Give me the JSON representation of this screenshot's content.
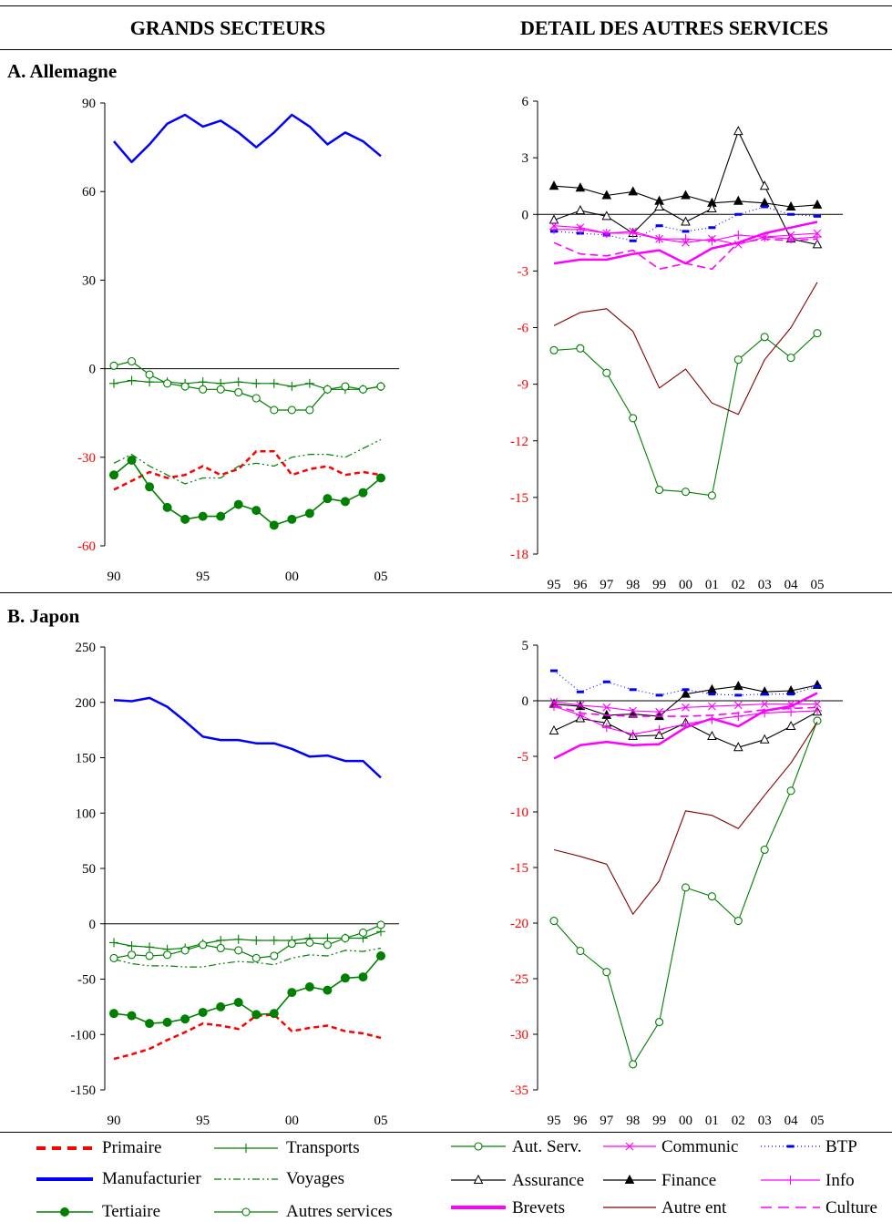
{
  "headers": {
    "left": "GRANDS SECTEURS",
    "right": "DETAIL DES AUTRES SERVICES"
  },
  "sections": {
    "a": "A. Allemagne",
    "b": "B. Japon"
  },
  "colors": {
    "primary_red": "#ff0000",
    "manuf_blue": "#0000ff",
    "green": "#008000",
    "magenta": "#ff00ff",
    "darkred": "#800000",
    "black": "#000000"
  },
  "legend": {
    "left": [
      {
        "key": "primaire",
        "label": "Primaire"
      },
      {
        "key": "transports",
        "label": "Transports"
      },
      {
        "key": "manufacturier",
        "label": "Manufacturier"
      },
      {
        "key": "voyages",
        "label": "Voyages"
      },
      {
        "key": "tertiaire",
        "label": "Tertiaire"
      },
      {
        "key": "autres_services",
        "label": "Autres services"
      }
    ],
    "right": [
      {
        "key": "aut_serv",
        "label": "Aut. Serv."
      },
      {
        "key": "communic",
        "label": "Communic"
      },
      {
        "key": "btp",
        "label": "BTP"
      },
      {
        "key": "assurance",
        "label": "Assurance"
      },
      {
        "key": "finance",
        "label": "Finance"
      },
      {
        "key": "info",
        "label": "Info"
      },
      {
        "key": "brevets",
        "label": "Brevets"
      },
      {
        "key": "autre_ent",
        "label": "Autre ent"
      },
      {
        "key": "culture",
        "label": "Culture"
      }
    ]
  },
  "chart_data": [
    {
      "id": "A-left",
      "type": "line",
      "title": "A. Allemagne — GRANDS SECTEURS",
      "x": [
        1990,
        1991,
        1992,
        1993,
        1994,
        1995,
        1996,
        1997,
        1998,
        1999,
        2000,
        2001,
        2002,
        2003,
        2004,
        2005
      ],
      "xticks": [
        {
          "v": 1990,
          "label": "90"
        },
        {
          "v": 1995,
          "label": "95"
        },
        {
          "v": 2000,
          "label": "00"
        },
        {
          "v": 2005,
          "label": "05"
        }
      ],
      "ylim": [
        -60,
        90
      ],
      "yticks": [
        {
          "v": 90,
          "label": "90",
          "red": false
        },
        {
          "v": 60,
          "label": "60",
          "red": false
        },
        {
          "v": 30,
          "label": "30",
          "red": false
        },
        {
          "v": 0,
          "label": "0",
          "red": false
        },
        {
          "v": -30,
          "label": "-30",
          "red": true
        },
        {
          "v": -60,
          "label": "-60",
          "red": true
        }
      ],
      "series": [
        {
          "key": "manufacturier",
          "name": "Manufacturier",
          "values": [
            77,
            70,
            76,
            83,
            86,
            82,
            84,
            80,
            75,
            80,
            86,
            82,
            76,
            80,
            77,
            72
          ]
        },
        {
          "key": "primaire",
          "name": "Primaire",
          "values": [
            -41,
            -38,
            -35,
            -37,
            -36,
            -33,
            -36,
            -34,
            -28,
            -28,
            -36,
            -34,
            -33,
            -36,
            -35,
            -36
          ]
        },
        {
          "key": "transports",
          "name": "Transports",
          "values": [
            -5,
            -4,
            -4.5,
            -4.5,
            -5,
            -4.5,
            -5,
            -4.5,
            -5,
            -5,
            -6,
            -5,
            -7,
            -7,
            -7,
            -6
          ]
        },
        {
          "key": "voyages",
          "name": "Voyages",
          "values": [
            -32,
            -29,
            -33,
            -36,
            -39,
            -37,
            -37,
            -33,
            -32,
            -33,
            -30,
            -29,
            -29,
            -30,
            -27,
            -24
          ]
        },
        {
          "key": "tertiaire",
          "name": "Tertiaire",
          "values": [
            -36,
            -31,
            -40,
            -47,
            -51,
            -50,
            -50,
            -46,
            -48,
            -53,
            -51,
            -49,
            -44,
            -45,
            -42,
            -37
          ]
        },
        {
          "key": "autres_services",
          "name": "Autres services",
          "values": [
            1,
            2.5,
            -2,
            -5,
            -6,
            -7,
            -7,
            -8,
            -10,
            -14,
            -14,
            -14,
            -7,
            -6,
            -7,
            -6
          ]
        }
      ]
    },
    {
      "id": "A-right",
      "type": "line",
      "title": "A. Allemagne — DETAIL DES AUTRES SERVICES",
      "x": [
        1995,
        1996,
        1997,
        1998,
        1999,
        2000,
        2001,
        2002,
        2003,
        2004,
        2005
      ],
      "xticks": [
        {
          "v": 1995,
          "label": "95"
        },
        {
          "v": 1996,
          "label": "96"
        },
        {
          "v": 1997,
          "label": "97"
        },
        {
          "v": 1998,
          "label": "98"
        },
        {
          "v": 1999,
          "label": "99"
        },
        {
          "v": 2000,
          "label": "00"
        },
        {
          "v": 2001,
          "label": "01"
        },
        {
          "v": 2002,
          "label": "02"
        },
        {
          "v": 2003,
          "label": "03"
        },
        {
          "v": 2004,
          "label": "04"
        },
        {
          "v": 2005,
          "label": "05"
        }
      ],
      "ylim": [
        -18,
        6
      ],
      "yticks": [
        {
          "v": 6,
          "label": "6",
          "red": false
        },
        {
          "v": 3,
          "label": "3",
          "red": false
        },
        {
          "v": 0,
          "label": "0",
          "red": false
        },
        {
          "v": -3,
          "label": "-3",
          "red": true
        },
        {
          "v": -6,
          "label": "-6",
          "red": true
        },
        {
          "v": -9,
          "label": "-9",
          "red": true
        },
        {
          "v": -12,
          "label": "-12",
          "red": true
        },
        {
          "v": -15,
          "label": "-15",
          "red": true
        },
        {
          "v": -18,
          "label": "-18",
          "red": true
        }
      ],
      "series": [
        {
          "key": "aut_serv",
          "name": "Aut. Serv.",
          "values": [
            -7.2,
            -7.1,
            -8.4,
            -10.8,
            -14.6,
            -14.7,
            -14.9,
            -7.7,
            -6.5,
            -7.6,
            -6.3
          ]
        },
        {
          "key": "autre_ent",
          "name": "Autre ent",
          "values": [
            -5.9,
            -5.2,
            -5,
            -6.2,
            -9.2,
            -8.2,
            -10,
            -10.6,
            -7.7,
            -6,
            -3.6
          ]
        },
        {
          "key": "finance",
          "name": "Finance",
          "values": [
            1.5,
            1.4,
            1.0,
            1.2,
            0.7,
            1.0,
            0.6,
            0.7,
            0.6,
            0.4,
            0.5
          ]
        },
        {
          "key": "assurance",
          "name": "Assurance",
          "values": [
            -0.3,
            0.2,
            -0.1,
            -1.0,
            0.4,
            -0.4,
            0.3,
            4.4,
            1.5,
            -1.3,
            -1.6
          ]
        },
        {
          "key": "btp",
          "name": "BTP",
          "values": [
            -0.9,
            -1.0,
            -1.1,
            -1.4,
            -0.6,
            -0.9,
            -0.7,
            0,
            0.4,
            0,
            -0.1
          ]
        },
        {
          "key": "communic",
          "name": "Communic",
          "values": [
            -0.6,
            -0.7,
            -1.0,
            -0.9,
            -1.3,
            -1.5,
            -1.3,
            -1.6,
            -1.2,
            -1.1,
            -1.0
          ]
        },
        {
          "key": "info",
          "name": "Info",
          "values": [
            -0.8,
            -0.8,
            -1.0,
            -1.0,
            -1.3,
            -1.3,
            -1.4,
            -1.1,
            -1.2,
            -1.3,
            -1.2
          ]
        },
        {
          "key": "brevets",
          "name": "Brevets",
          "values": [
            -2.6,
            -2.4,
            -2.4,
            -2.1,
            -1.9,
            -2.6,
            -1.8,
            -1.5,
            -1.0,
            -0.7,
            -0.4
          ]
        },
        {
          "key": "culture",
          "name": "Culture",
          "values": [
            -1.5,
            -2.1,
            -2.2,
            -1.9,
            -2.9,
            -2.6,
            -2.9,
            -1.5,
            -1.3,
            -1.4,
            -1.3
          ]
        }
      ]
    },
    {
      "id": "B-left",
      "type": "line",
      "title": "B. Japon — GRANDS SECTEURS",
      "x": [
        1990,
        1991,
        1992,
        1993,
        1994,
        1995,
        1996,
        1997,
        1998,
        1999,
        2000,
        2001,
        2002,
        2003,
        2004,
        2005
      ],
      "xticks": [
        {
          "v": 1990,
          "label": "90"
        },
        {
          "v": 1995,
          "label": "95"
        },
        {
          "v": 2000,
          "label": "00"
        },
        {
          "v": 2005,
          "label": "05"
        }
      ],
      "ylim": [
        -150,
        250
      ],
      "yticks": [
        {
          "v": 250,
          "label": "250",
          "red": false
        },
        {
          "v": 200,
          "label": "200",
          "red": false
        },
        {
          "v": 150,
          "label": "150",
          "red": false
        },
        {
          "v": 100,
          "label": "100",
          "red": false
        },
        {
          "v": 50,
          "label": "50",
          "red": false
        },
        {
          "v": 0,
          "label": "0",
          "red": false
        },
        {
          "v": -50,
          "label": "-50",
          "red": false
        },
        {
          "v": -100,
          "label": "-100",
          "red": false
        },
        {
          "v": -150,
          "label": "-150",
          "red": false
        }
      ],
      "series": [
        {
          "key": "manufacturier",
          "name": "Manufacturier",
          "values": [
            202,
            201,
            204,
            196,
            183,
            169,
            166,
            166,
            163,
            163,
            158,
            151,
            152,
            147,
            147,
            132
          ]
        },
        {
          "key": "primaire",
          "name": "Primaire",
          "values": [
            -122,
            -118,
            -113,
            -105,
            -98,
            -90,
            -92,
            -95,
            -83,
            -82,
            -97,
            -94,
            -92,
            -97,
            -99,
            -103
          ]
        },
        {
          "key": "transports",
          "name": "Transports",
          "values": [
            -17,
            -20,
            -21,
            -23,
            -22,
            -18,
            -15,
            -14,
            -15,
            -15,
            -15,
            -13,
            -13,
            -13,
            -13,
            -7
          ]
        },
        {
          "key": "voyages",
          "name": "Voyages",
          "values": [
            -32,
            -36,
            -38,
            -38,
            -39,
            -39,
            -36,
            -34,
            -35,
            -37,
            -31,
            -28,
            -29,
            -24,
            -25,
            -22
          ]
        },
        {
          "key": "tertiaire",
          "name": "Tertiaire",
          "values": [
            -81,
            -83,
            -90,
            -89,
            -86,
            -80,
            -75,
            -71,
            -82,
            -81,
            -62,
            -57,
            -60,
            -49,
            -48,
            -29
          ]
        },
        {
          "key": "autres_services",
          "name": "Autres services",
          "values": [
            -31,
            -28,
            -29,
            -28,
            -24,
            -19,
            -22,
            -24,
            -31,
            -29,
            -18,
            -17,
            -19,
            -13,
            -8,
            -1
          ]
        }
      ]
    },
    {
      "id": "B-right",
      "type": "line",
      "title": "B. Japon — DETAIL DES AUTRES SERVICES",
      "x": [
        1995,
        1996,
        1997,
        1998,
        1999,
        2000,
        2001,
        2002,
        2003,
        2004,
        2005
      ],
      "xticks": [
        {
          "v": 1995,
          "label": "95"
        },
        {
          "v": 1996,
          "label": "96"
        },
        {
          "v": 1997,
          "label": "97"
        },
        {
          "v": 1998,
          "label": "98"
        },
        {
          "v": 1999,
          "label": "99"
        },
        {
          "v": 2000,
          "label": "00"
        },
        {
          "v": 2001,
          "label": "01"
        },
        {
          "v": 2002,
          "label": "02"
        },
        {
          "v": 2003,
          "label": "03"
        },
        {
          "v": 2004,
          "label": "04"
        },
        {
          "v": 2005,
          "label": "05"
        }
      ],
      "ylim": [
        -35,
        5
      ],
      "yticks": [
        {
          "v": 5,
          "label": "5",
          "red": false
        },
        {
          "v": 0,
          "label": "0",
          "red": false
        },
        {
          "v": -5,
          "label": "-5",
          "red": true
        },
        {
          "v": -10,
          "label": "-10",
          "red": true
        },
        {
          "v": -15,
          "label": "-15",
          "red": true
        },
        {
          "v": -20,
          "label": "-20",
          "red": true
        },
        {
          "v": -25,
          "label": "-25",
          "red": true
        },
        {
          "v": -30,
          "label": "-30",
          "red": true
        },
        {
          "v": -35,
          "label": "-35",
          "red": true
        }
      ],
      "series": [
        {
          "key": "aut_serv",
          "name": "Aut. Serv.",
          "values": [
            -19.8,
            -22.5,
            -24.4,
            -32.7,
            -28.9,
            -16.8,
            -17.6,
            -19.8,
            -13.4,
            -8.1,
            -1.8
          ]
        },
        {
          "key": "autre_ent",
          "name": "Autre ent",
          "values": [
            -13.4,
            -14.0,
            -14.7,
            -19.2,
            -16.2,
            -9.9,
            -10.3,
            -11.5,
            -8.5,
            -5.6,
            -1.9
          ]
        },
        {
          "key": "finance",
          "name": "Finance",
          "values": [
            -0.3,
            -0.5,
            -1.3,
            -1.2,
            -1.4,
            0.6,
            1.0,
            1.3,
            0.8,
            0.9,
            1.4
          ]
        },
        {
          "key": "assurance",
          "name": "Assurance",
          "values": [
            -2.7,
            -1.6,
            -2.0,
            -3.2,
            -3.1,
            -2.0,
            -3.2,
            -4.2,
            -3.5,
            -2.3,
            -1.0
          ]
        },
        {
          "key": "btp",
          "name": "BTP",
          "values": [
            2.7,
            0.8,
            1.7,
            1.0,
            0.5,
            1.0,
            0.6,
            0.5,
            0.6,
            0.6,
            1.3
          ]
        },
        {
          "key": "communic",
          "name": "Communic",
          "values": [
            -0.1,
            -0.4,
            -0.6,
            -0.9,
            -1.0,
            -0.6,
            -0.5,
            -0.4,
            -0.3,
            -0.3,
            -0.3
          ]
        },
        {
          "key": "info",
          "name": "Info",
          "values": [
            -0.5,
            -1.3,
            -2.4,
            -3.0,
            -2.6,
            -2.1,
            -1.7,
            -1.4,
            -1.1,
            -1.0,
            -0.9
          ]
        },
        {
          "key": "brevets",
          "name": "Brevets",
          "values": [
            -5.2,
            -4.0,
            -3.7,
            -4.0,
            -3.9,
            -2.4,
            -1.6,
            -2.3,
            -0.9,
            -0.5,
            0.7
          ]
        },
        {
          "key": "culture",
          "name": "Culture",
          "values": [
            -0.4,
            -1.1,
            -1.3,
            -1.4,
            -1.4,
            -1.4,
            -1.3,
            -1.1,
            -0.8,
            -0.7,
            -0.6
          ]
        }
      ]
    }
  ]
}
